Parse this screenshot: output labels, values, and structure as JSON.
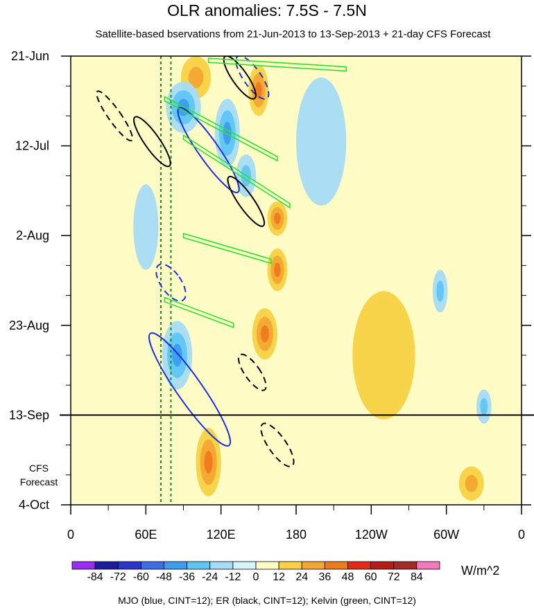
{
  "chart_data": {
    "type": "heatmap",
    "title": "OLR anomalies: 7.5S - 7.5N",
    "subtitle": "Satellite-based bservations from 21-Jun-2013 to 13-Sep-2013 + 21-day CFS Forecast",
    "x_ticks": [
      "0",
      "60E",
      "120E",
      "180",
      "120W",
      "60W",
      "0"
    ],
    "x_range_deg_east": [
      0,
      360
    ],
    "y_ticks": [
      "21-Jun",
      "12-Jul",
      "2-Aug",
      "23-Aug",
      "13-Sep",
      "4-Oct"
    ],
    "y_range_days_since_21_Jun": [
      0,
      105
    ],
    "observation_end": "13-Sep",
    "forecast_label_line1": "CFS",
    "forecast_label_line2": "Forecast",
    "colorbar_levels": [
      "-84",
      "-72",
      "-60",
      "-48",
      "-36",
      "-24",
      "-12",
      "0",
      "12",
      "24",
      "36",
      "48",
      "60",
      "72",
      "84"
    ],
    "colorbar_colors": [
      "#9a2df0",
      "#1c1c9c",
      "#2a36c8",
      "#3e6ee6",
      "#3c9cf0",
      "#5fc6f4",
      "#a6dcf6",
      "#d6f4f8",
      "#fffcc6",
      "#f8d244",
      "#f4a634",
      "#ee7a1c",
      "#e02a1a",
      "#b81c18",
      "#a52a2a",
      "#f678bc"
    ],
    "units": "W/m^2",
    "contour_note": "MJO (blue, CINT=12); ER (black, CINT=12); Kelvin (green, CINT=12)",
    "reference_lines_deg_east": [
      72,
      80
    ],
    "anomaly_blobs": [
      {
        "lon": 100,
        "day": 5,
        "value": 30,
        "r_lon": 12,
        "r_day": 5
      },
      {
        "lon": 150,
        "day": 8,
        "value": 40,
        "r_lon": 8,
        "r_day": 6
      },
      {
        "lon": 90,
        "day": 12,
        "value": -45,
        "r_lon": 14,
        "r_day": 6
      },
      {
        "lon": 125,
        "day": 18,
        "value": -40,
        "r_lon": 10,
        "r_day": 8
      },
      {
        "lon": 140,
        "day": 28,
        "value": -35,
        "r_lon": 8,
        "r_day": 5
      },
      {
        "lon": 165,
        "day": 38,
        "value": 40,
        "r_lon": 8,
        "r_day": 4
      },
      {
        "lon": 165,
        "day": 50,
        "value": 36,
        "r_lon": 8,
        "r_day": 5
      },
      {
        "lon": 155,
        "day": 65,
        "value": 36,
        "r_lon": 10,
        "r_day": 6
      },
      {
        "lon": 85,
        "day": 70,
        "value": -40,
        "r_lon": 12,
        "r_day": 8
      },
      {
        "lon": 110,
        "day": 95,
        "value": 45,
        "r_lon": 10,
        "r_day": 8
      },
      {
        "lon": 330,
        "day": 82,
        "value": -30,
        "r_lon": 6,
        "r_day": 4
      },
      {
        "lon": 295,
        "day": 55,
        "value": -24,
        "r_lon": 6,
        "r_day": 5
      },
      {
        "lon": 60,
        "day": 40,
        "value": -20,
        "r_lon": 10,
        "r_day": 10
      },
      {
        "lon": 200,
        "day": 20,
        "value": -12,
        "r_lon": 20,
        "r_day": 15
      },
      {
        "lon": 250,
        "day": 70,
        "value": 12,
        "r_lon": 25,
        "r_day": 15
      },
      {
        "lon": 320,
        "day": 100,
        "value": 24,
        "r_lon": 10,
        "r_day": 4
      }
    ],
    "mjo_contours": [
      {
        "lon": 110,
        "day": 22,
        "r_lon": 8,
        "r_day": 12,
        "style": "solid"
      },
      {
        "lon": 95,
        "day": 78,
        "r_lon": 10,
        "r_day": 16,
        "style": "solid"
      },
      {
        "lon": 145,
        "day": 5,
        "r_lon": 7,
        "r_day": 6,
        "style": "dashed"
      },
      {
        "lon": 80,
        "day": 53,
        "r_lon": 8,
        "r_day": 5,
        "style": "dashed"
      }
    ],
    "er_contours": [
      {
        "lon": 65,
        "day": 20,
        "r_lon": 6,
        "r_day": 7,
        "style": "solid"
      },
      {
        "lon": 140,
        "day": 34,
        "r_lon": 6,
        "r_day": 7,
        "style": "solid"
      },
      {
        "lon": 135,
        "day": 5,
        "r_lon": 6,
        "r_day": 6,
        "style": "solid"
      },
      {
        "lon": 35,
        "day": 14,
        "r_lon": 5,
        "r_day": 7,
        "style": "dashed"
      },
      {
        "lon": 165,
        "day": 91,
        "r_lon": 7,
        "r_day": 6,
        "style": "dashed"
      },
      {
        "lon": 145,
        "day": 74,
        "r_lon": 6,
        "r_day": 5,
        "style": "dashed"
      }
    ],
    "kelvin_contours": [
      {
        "lon1": 75,
        "day1": 10,
        "lon2": 165,
        "day2": 24
      },
      {
        "lon1": 90,
        "day1": 19,
        "lon2": 175,
        "day2": 35
      },
      {
        "lon1": 90,
        "day1": 42,
        "lon2": 160,
        "day2": 48
      },
      {
        "lon1": 75,
        "day1": 57,
        "lon2": 130,
        "day2": 63
      },
      {
        "lon1": 110,
        "day1": 1,
        "lon2": 220,
        "day2": 3
      }
    ]
  }
}
